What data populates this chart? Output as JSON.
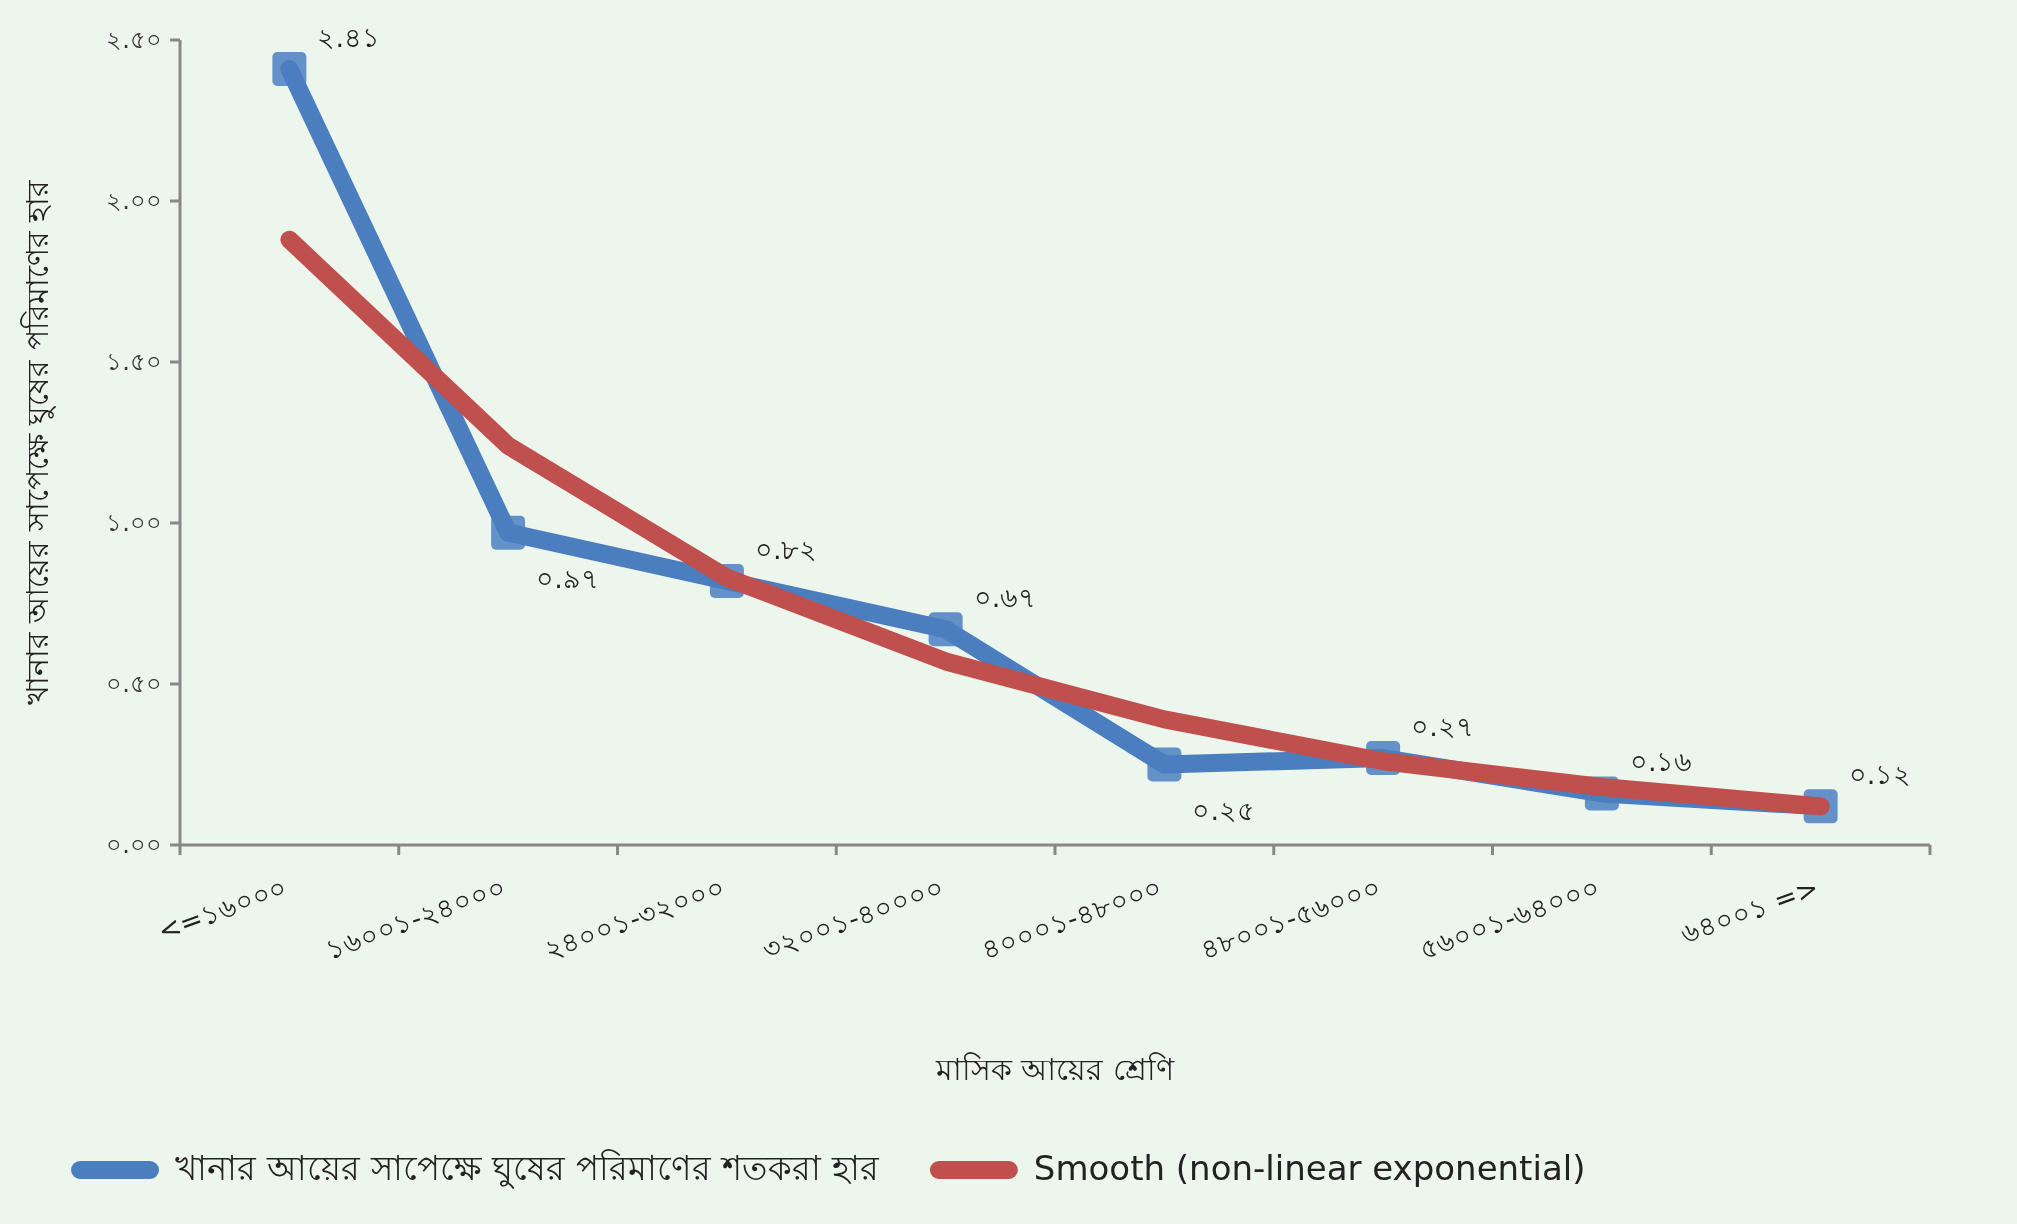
{
  "chart_data": {
    "type": "line",
    "xlabel": "মাসিক আয়ের শ্রেণি",
    "ylabel": "খানার আয়ের সাপেক্ষে ঘুষের পরিমাণের হার",
    "categories": [
      "<=১৬০০০",
      "১৬০০১-২৪০০০",
      "২৪০০১-৩২০০০",
      "৩২০০১-৪০০০০",
      "৪০০০১-৪৮০০০",
      "৪৮০০১-৫৬০০০",
      "৫৬০০১-৬৪০০০",
      "৬৪০০১ =>"
    ],
    "series": [
      {
        "name": "খানার আয়ের সাপেক্ষে ঘুষের পরিমাণের শতকরা হার",
        "color": "#4a7ebf",
        "type": "line",
        "marker": "square",
        "values": [
          2.41,
          0.97,
          0.82,
          0.67,
          0.25,
          0.27,
          0.16,
          0.12
        ],
        "value_labels": [
          "২.৪১",
          "০.৯৭",
          "০.৮২",
          "০.৬৭",
          "০.২৫",
          "০.২৭",
          "০.১৬",
          "০.১২"
        ]
      },
      {
        "name": "Smooth (non-linear exponential)",
        "color": "#c0504d",
        "type": "line",
        "marker": "none",
        "values": [
          1.88,
          1.24,
          0.83,
          0.57,
          0.39,
          0.26,
          0.18,
          0.12
        ]
      }
    ],
    "ylim": [
      0,
      2.5
    ],
    "yticks": [
      {
        "value": 0,
        "label": "০.০০"
      },
      {
        "value": 0.5,
        "label": "০.৫০"
      },
      {
        "value": 1,
        "label": "১.০০"
      },
      {
        "value": 1.5,
        "label": "১.৫০"
      },
      {
        "value": 2,
        "label": "২.০০"
      },
      {
        "value": 2.5,
        "label": "২.৫০"
      }
    ],
    "grid": false,
    "legend": "bottom",
    "line_style": "solid"
  }
}
